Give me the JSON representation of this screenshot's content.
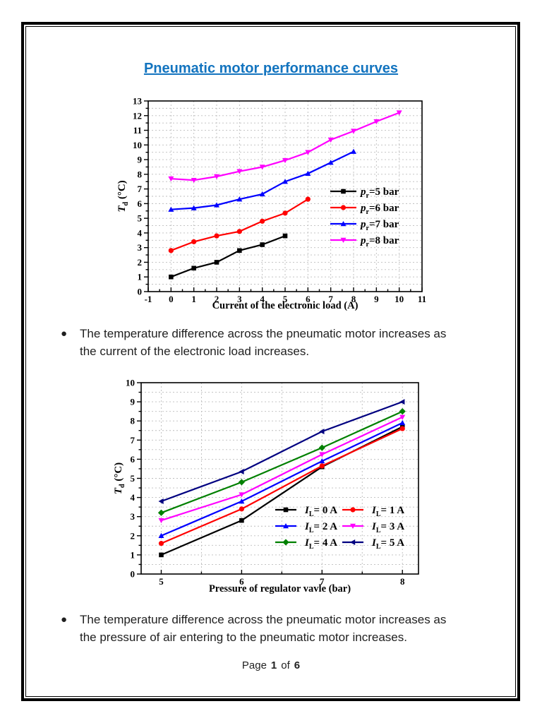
{
  "document": {
    "title": "Pneumatic motor performance curves",
    "title_color": "#1374bf",
    "bullets": [
      "The temperature difference across the pneumatic motor increases as the current of the electronic load increases.",
      "The temperature difference across the pneumatic motor increases as the pressure of air entering to the pneumatic motor increases."
    ],
    "footer": {
      "label_page": "Page",
      "current": "1",
      "label_of": "of",
      "total": "6"
    }
  },
  "colors": {
    "axis": "#000000",
    "grid": "#bdbdbd",
    "text": "#1f1f1f"
  },
  "chart_data": [
    {
      "type": "line",
      "title": "",
      "xlabel": "Current of the electronic load (A)",
      "ylabel": {
        "pre": "T",
        "sub": "d",
        "post": " (°C)"
      },
      "xlim": [
        -1,
        11
      ],
      "ylim": [
        0,
        13
      ],
      "xticks": [
        -1,
        0,
        1,
        2,
        3,
        4,
        5,
        6,
        7,
        8,
        9,
        10,
        11
      ],
      "yticks": [
        0,
        1,
        2,
        3,
        4,
        5,
        6,
        7,
        8,
        9,
        10,
        11,
        12,
        13
      ],
      "x_minor_step": 0.5,
      "y_minor_step": 0.5,
      "grid": true,
      "grid_x_step": 1,
      "grid_y_step": 0.5,
      "legend_position": "right-center",
      "series": [
        {
          "label": {
            "pre": "p",
            "sub": "r",
            "post": "=5 bar"
          },
          "color": "#000000",
          "marker": "square",
          "x": [
            0,
            1,
            2,
            3,
            4,
            5
          ],
          "y": [
            1.0,
            1.6,
            2.0,
            2.8,
            3.2,
            3.8
          ]
        },
        {
          "label": {
            "pre": "p",
            "sub": "r",
            "post": "=6 bar"
          },
          "color": "#ff0000",
          "marker": "circle",
          "x": [
            0,
            1,
            2,
            3,
            4,
            5,
            6
          ],
          "y": [
            2.8,
            3.4,
            3.8,
            4.1,
            4.8,
            5.35,
            6.3
          ]
        },
        {
          "label": {
            "pre": "p",
            "sub": "r",
            "post": "=7 bar"
          },
          "color": "#0000ff",
          "marker": "triangle-up",
          "x": [
            0,
            1,
            2,
            3,
            4,
            5,
            6,
            7,
            8
          ],
          "y": [
            5.6,
            5.7,
            5.9,
            6.3,
            6.65,
            7.5,
            8.05,
            8.8,
            9.55
          ]
        },
        {
          "label": {
            "pre": "p",
            "sub": "r",
            "post": "=8 bar"
          },
          "color": "#ff00ff",
          "marker": "triangle-down",
          "x": [
            0,
            1,
            2,
            3,
            4,
            5,
            6,
            7,
            8,
            9,
            10
          ],
          "y": [
            7.7,
            7.6,
            7.85,
            8.2,
            8.5,
            8.95,
            9.5,
            10.35,
            10.95,
            11.6,
            12.2
          ]
        }
      ]
    },
    {
      "type": "line",
      "title": "",
      "xlabel": "Pressure of regulator vavle (bar)",
      "ylabel": {
        "pre": "T",
        "sub": "d",
        "post": " (°C)"
      },
      "xlim": [
        4.75,
        8.2
      ],
      "ylim": [
        0,
        10
      ],
      "xticks": [
        5,
        6,
        7,
        8
      ],
      "yticks": [
        0,
        1,
        2,
        3,
        4,
        5,
        6,
        7,
        8,
        9,
        10
      ],
      "x_minor_step": 0.5,
      "y_minor_step": 0.5,
      "grid": true,
      "grid_x_step": 0.5,
      "grid_y_step": 0.5,
      "legend_position": "bottom-right",
      "series": [
        {
          "label": {
            "pre": "I",
            "sub": "L",
            "post": "= 0 A"
          },
          "color": "#000000",
          "marker": "square",
          "x": [
            5,
            6,
            7,
            8
          ],
          "y": [
            1.0,
            2.8,
            5.6,
            7.7
          ]
        },
        {
          "label": {
            "pre": "I",
            "sub": "L",
            "post": "= 1 A"
          },
          "color": "#ff0000",
          "marker": "circle",
          "x": [
            5,
            6,
            7,
            8
          ],
          "y": [
            1.6,
            3.4,
            5.65,
            7.6
          ]
        },
        {
          "label": {
            "pre": "I",
            "sub": "L",
            "post": "= 2 A"
          },
          "color": "#0000ff",
          "marker": "triangle-up",
          "x": [
            5,
            6,
            7,
            8
          ],
          "y": [
            2.0,
            3.8,
            5.9,
            7.9
          ]
        },
        {
          "label": {
            "pre": "I",
            "sub": "L",
            "post": "= 3 A"
          },
          "color": "#ff00ff",
          "marker": "triangle-down",
          "x": [
            5,
            6,
            7,
            8
          ],
          "y": [
            2.8,
            4.15,
            6.25,
            8.2
          ]
        },
        {
          "label": {
            "pre": "I",
            "sub": "L",
            "post": "= 4 A"
          },
          "color": "#008000",
          "marker": "diamond",
          "x": [
            5,
            6,
            7,
            8
          ],
          "y": [
            3.2,
            4.8,
            6.6,
            8.5
          ]
        },
        {
          "label": {
            "pre": "I",
            "sub": "L",
            "post": "= 5 A"
          },
          "color": "#000080",
          "marker": "triangle-left",
          "x": [
            5,
            6,
            7,
            8
          ],
          "y": [
            3.8,
            5.35,
            7.45,
            9.0
          ]
        }
      ]
    }
  ]
}
